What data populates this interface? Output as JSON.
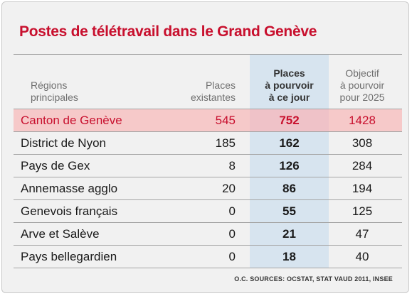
{
  "chart_data": {
    "type": "table",
    "title": "Postes de télétravail dans le Grand Genève",
    "columns": {
      "regions": [
        "Régions",
        "principales"
      ],
      "existing": [
        "Places",
        "existantes"
      ],
      "open": [
        "Places",
        "à pourvoir",
        "à ce jour"
      ],
      "goal": [
        "Objectif",
        "à pourvoir",
        "pour 2025"
      ]
    },
    "rows": [
      {
        "name": "Canton de Genève",
        "existing": "545",
        "open": "752",
        "goal": "1428"
      },
      {
        "name": "District de Nyon",
        "existing": "185",
        "open": "162",
        "goal": "308"
      },
      {
        "name": "Pays de Gex",
        "existing": "8",
        "open": "126",
        "goal": "284"
      },
      {
        "name": "Annemasse agglo",
        "existing": "20",
        "open": "86",
        "goal": "194"
      },
      {
        "name": "Genevois français",
        "existing": "0",
        "open": "55",
        "goal": "125"
      },
      {
        "name": "Arve et Salève",
        "existing": "0",
        "open": "21",
        "goal": "47"
      },
      {
        "name": "Pays bellegardien",
        "existing": "0",
        "open": "18",
        "goal": "40"
      }
    ],
    "source": "O.C. SOURCES: OCSTAT, STAT VAUD 2011, INSEE",
    "colors": {
      "accent": "#c8102e",
      "highlight_row": "#f6c9c9",
      "highlight_column": "#d7e4ef"
    }
  }
}
